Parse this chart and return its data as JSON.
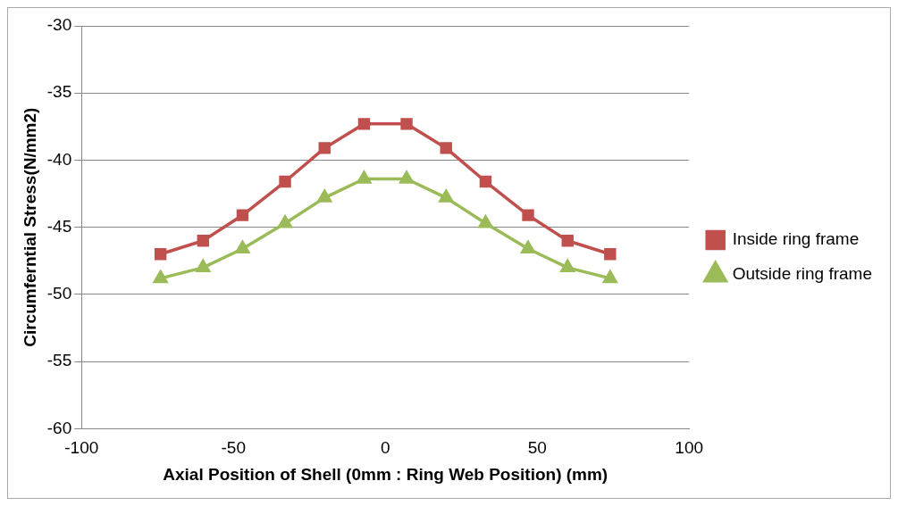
{
  "chart_data": {
    "type": "line",
    "xlabel": "Axial Position of Shell (0mm : Ring Web Position) (mm)",
    "ylabel": "Circumferntial Stress(N/mm2)",
    "x": [
      -74,
      -60,
      -47,
      -33,
      -20,
      -7,
      7,
      20,
      33,
      47,
      60,
      74
    ],
    "series": [
      {
        "name": "Inside ring frame",
        "color": "#c0504d",
        "marker": "square",
        "values": [
          -47.0,
          -46.0,
          -44.1,
          -41.6,
          -39.1,
          -37.3,
          -37.3,
          -39.1,
          -41.6,
          -44.1,
          -46.0,
          -47.0
        ]
      },
      {
        "name": "Outside ring frame",
        "color": "#9bbb59",
        "marker": "triangle",
        "values": [
          -48.8,
          -48.0,
          -46.6,
          -44.7,
          -42.8,
          -41.4,
          -41.4,
          -42.8,
          -44.7,
          -46.6,
          -48.0,
          -48.8
        ]
      }
    ],
    "xlim": [
      -100,
      100
    ],
    "xticks": [
      -100,
      -50,
      0,
      50,
      100
    ],
    "ylim": [
      -60,
      -30
    ],
    "yticks": [
      -60,
      -55,
      -50,
      -45,
      -40,
      -35,
      -30
    ],
    "grid": "y",
    "legend": "right"
  }
}
